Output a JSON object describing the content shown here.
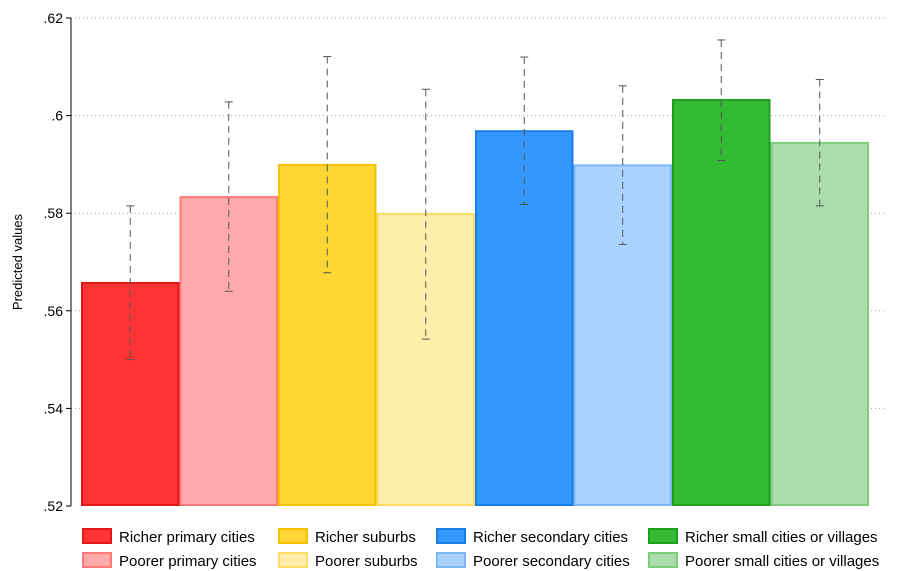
{
  "chart_data": {
    "type": "bar",
    "title": "",
    "xlabel": "",
    "ylabel": "Predicted values",
    "ylim": [
      0.52,
      0.62
    ],
    "yticks": [
      0.52,
      0.54,
      0.56,
      0.58,
      0.6,
      0.62
    ],
    "ytick_labels": [
      ".52",
      ".54",
      ".56",
      ".58",
      ".6",
      ".62"
    ],
    "grid": true,
    "legend_position": "bottom",
    "series": [
      {
        "name": "Richer primary cities",
        "value": 0.5657,
        "ci": [
          0.55,
          0.5815
        ],
        "color": "#ff3333",
        "edge": "#e01818"
      },
      {
        "name": "Poorer primary cities",
        "value": 0.5833,
        "ci": [
          0.564,
          0.6028
        ],
        "color": "#ffaaaa",
        "edge": "#ff7a7a"
      },
      {
        "name": "Richer suburbs",
        "value": 0.5899,
        "ci": [
          0.5678,
          0.6121
        ],
        "color": "#ffd633",
        "edge": "#f2c200"
      },
      {
        "name": "Poorer suburbs",
        "value": 0.5798,
        "ci": [
          0.5542,
          0.6054
        ],
        "color": "#ffeeaa",
        "edge": "#ffdc66"
      },
      {
        "name": "Richer secondary cities",
        "value": 0.5968,
        "ci": [
          0.5818,
          0.612
        ],
        "color": "#3399ff",
        "edge": "#1a7fe6"
      },
      {
        "name": "Poorer secondary cities",
        "value": 0.5898,
        "ci": [
          0.5736,
          0.6061
        ],
        "color": "#aad4ff",
        "edge": "#7ab8f5"
      },
      {
        "name": "Richer small cities or villages",
        "value": 0.6032,
        "ci": [
          0.5908,
          0.6155
        ],
        "color": "#33bb33",
        "edge": "#1f9e1f"
      },
      {
        "name": "Poorer small cities or villages",
        "value": 0.5944,
        "ci": [
          0.5815,
          0.6074
        ],
        "color": "#aaddaa",
        "edge": "#7fcc7f"
      }
    ]
  }
}
